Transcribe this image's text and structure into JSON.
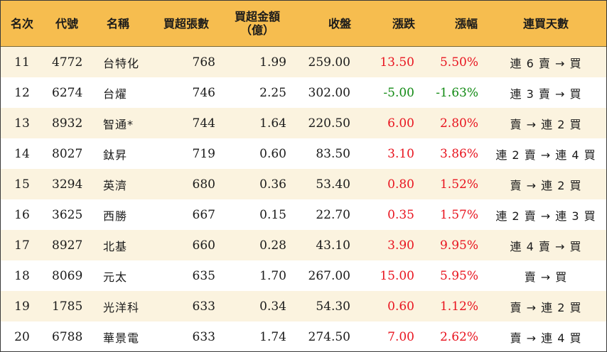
{
  "headers": [
    "名次",
    "代號",
    "名稱",
    "買超張數",
    "買超金額\n（億）",
    "收盤",
    "漲跌",
    "漲幅",
    "連買天數"
  ],
  "colors": {
    "header_bg": "#f6bd4f",
    "alt_row_bg": "#fbf3df",
    "up": "#e8141f",
    "down": "#128a14"
  },
  "rows": [
    {
      "rank": "11",
      "code": "4772",
      "name": "台特化",
      "shares": "768",
      "amount": "1.99",
      "close": "259.00",
      "change": "13.50",
      "pct": "5.50%",
      "trend": "up",
      "days": "連 6 賣 → 買"
    },
    {
      "rank": "12",
      "code": "6274",
      "name": "台燿",
      "shares": "746",
      "amount": "2.25",
      "close": "302.00",
      "change": "-5.00",
      "pct": "-1.63%",
      "trend": "down",
      "days": "連 3 賣 → 買"
    },
    {
      "rank": "13",
      "code": "8932",
      "name": "智通*",
      "shares": "744",
      "amount": "1.64",
      "close": "220.50",
      "change": "6.00",
      "pct": "2.80%",
      "trend": "up",
      "days": "賣 → 連 2 買"
    },
    {
      "rank": "14",
      "code": "8027",
      "name": "鈦昇",
      "shares": "719",
      "amount": "0.60",
      "close": "83.50",
      "change": "3.10",
      "pct": "3.86%",
      "trend": "up",
      "days": "連 2 賣 → 連 4 買"
    },
    {
      "rank": "15",
      "code": "3294",
      "name": "英濟",
      "shares": "680",
      "amount": "0.36",
      "close": "53.40",
      "change": "0.80",
      "pct": "1.52%",
      "trend": "up",
      "days": "賣 → 連 2 買"
    },
    {
      "rank": "16",
      "code": "3625",
      "name": "西勝",
      "shares": "667",
      "amount": "0.15",
      "close": "22.70",
      "change": "0.35",
      "pct": "1.57%",
      "trend": "up",
      "days": "連 2 賣 → 連 3 買"
    },
    {
      "rank": "17",
      "code": "8927",
      "name": "北基",
      "shares": "660",
      "amount": "0.28",
      "close": "43.10",
      "change": "3.90",
      "pct": "9.95%",
      "trend": "up",
      "days": "連 4 賣 → 買"
    },
    {
      "rank": "18",
      "code": "8069",
      "name": "元太",
      "shares": "635",
      "amount": "1.70",
      "close": "267.00",
      "change": "15.00",
      "pct": "5.95%",
      "trend": "up",
      "days": "賣 → 買"
    },
    {
      "rank": "19",
      "code": "1785",
      "name": "光洋科",
      "shares": "633",
      "amount": "0.34",
      "close": "54.30",
      "change": "0.60",
      "pct": "1.12%",
      "trend": "up",
      "days": "賣 → 連 2 買"
    },
    {
      "rank": "20",
      "code": "6788",
      "name": "華景電",
      "shares": "633",
      "amount": "1.74",
      "close": "274.50",
      "change": "7.00",
      "pct": "2.62%",
      "trend": "up",
      "days": "賣 → 連 4 買"
    }
  ]
}
